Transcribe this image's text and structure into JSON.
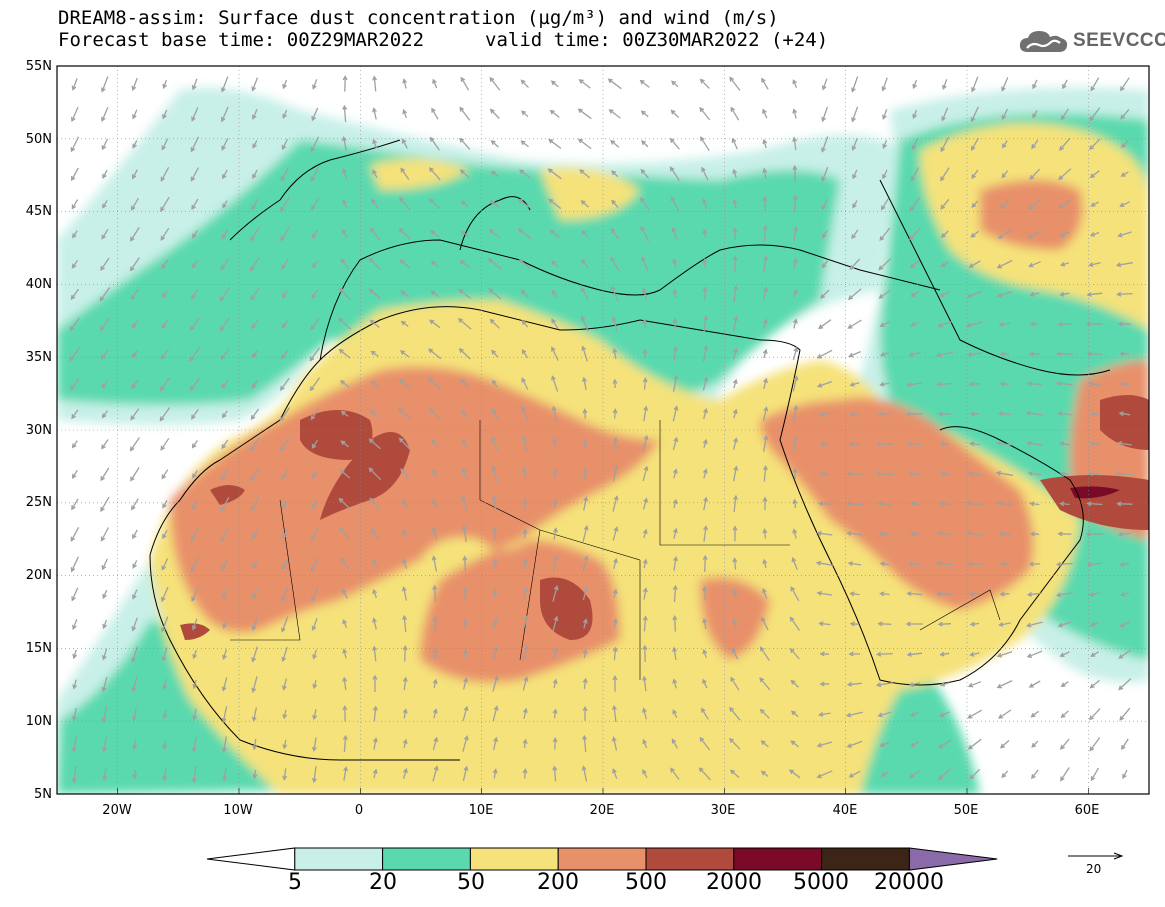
{
  "header": {
    "title_line1": "DREAM8-assim: Surface dust concentration (µg/m³) and wind (m/s)",
    "title_line2": "Forecast base time: 00Z29MAR2022",
    "valid_time": "valid time: 00Z30MAR2022 (+24)"
  },
  "logo": {
    "text": "SEEVCCC",
    "icon": "cloud-icon"
  },
  "map": {
    "lon_range": [
      -25,
      65
    ],
    "lat_range": [
      5,
      55
    ],
    "lat_ticks": [
      "5N",
      "10N",
      "15N",
      "20N",
      "25N",
      "30N",
      "35N",
      "40N",
      "45N",
      "50N",
      "55N"
    ],
    "lon_ticks": [
      "20W",
      "10W",
      "0",
      "10E",
      "20E",
      "30E",
      "40E",
      "50E",
      "60E"
    ],
    "grid": "dotted"
  },
  "colorbar": {
    "labels": [
      "5",
      "20",
      "50",
      "200",
      "500",
      "2000",
      "5000",
      "20000"
    ],
    "colors": [
      "#ffffff",
      "#c8f0e8",
      "#5ad9ae",
      "#f5e27a",
      "#e8906a",
      "#b04a3c",
      "#7a0a28",
      "#3c2416",
      "#8a6aa8"
    ]
  },
  "wind_reference": {
    "label": "20"
  }
}
